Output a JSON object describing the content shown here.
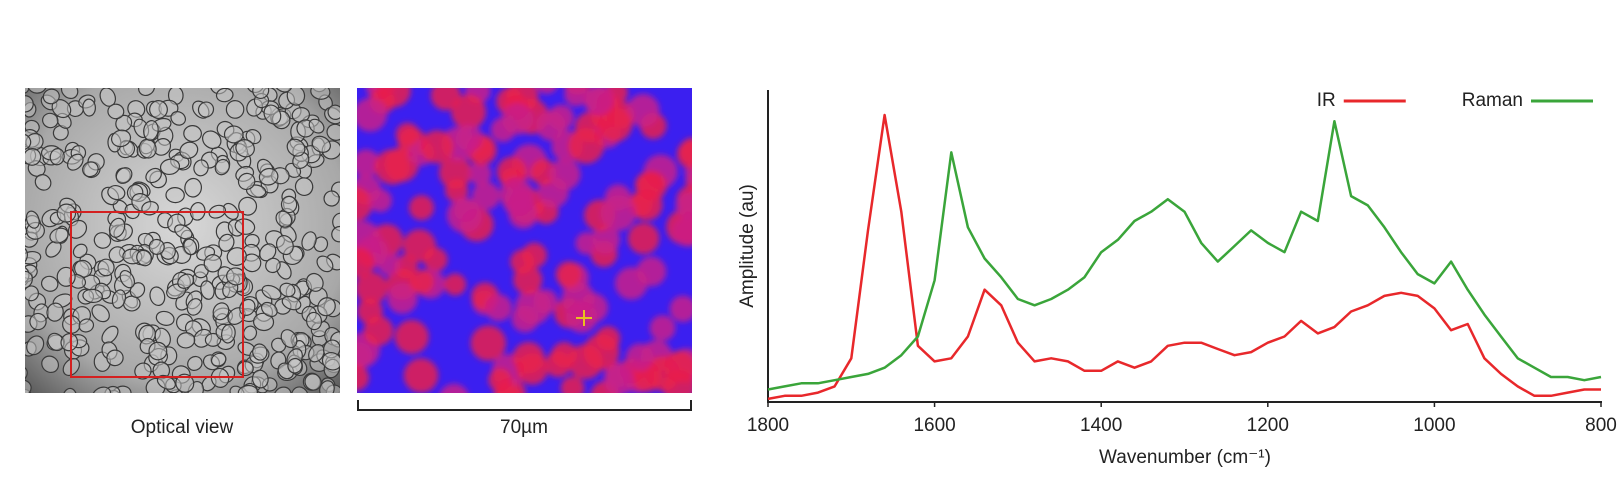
{
  "panels": {
    "optical_label": "Optical view",
    "map_scale_label": "70µm"
  },
  "chart_data": {
    "type": "line",
    "xlabel": "Wavenumber (cm⁻¹)",
    "ylabel": "Amplitude (au)",
    "x": [
      1800,
      1780,
      1760,
      1740,
      1720,
      1700,
      1680,
      1660,
      1640,
      1620,
      1600,
      1580,
      1560,
      1540,
      1520,
      1500,
      1480,
      1460,
      1440,
      1420,
      1400,
      1380,
      1360,
      1340,
      1320,
      1300,
      1280,
      1260,
      1240,
      1220,
      1200,
      1180,
      1160,
      1140,
      1120,
      1100,
      1080,
      1060,
      1040,
      1020,
      1000,
      980,
      960,
      940,
      920,
      900,
      880,
      860,
      840,
      820,
      800
    ],
    "series": [
      {
        "name": "IR",
        "color": "#e8282b",
        "values": [
          1,
          2,
          2,
          3,
          5,
          14,
          55,
          92,
          61,
          18,
          13,
          14,
          21,
          36,
          31,
          19,
          13,
          14,
          13,
          10,
          10,
          13,
          11,
          13,
          18,
          19,
          19,
          17,
          15,
          16,
          19,
          21,
          26,
          22,
          24,
          29,
          31,
          34,
          35,
          34,
          30,
          23,
          25,
          14,
          9,
          5,
          2,
          2,
          3,
          4,
          4
        ]
      },
      {
        "name": "Raman",
        "color": "#3aa53a",
        "values": [
          4,
          5,
          6,
          6,
          7,
          8,
          9,
          11,
          15,
          21,
          39,
          80,
          56,
          46,
          40,
          33,
          31,
          33,
          36,
          40,
          48,
          52,
          58,
          61,
          65,
          61,
          51,
          45,
          50,
          55,
          51,
          48,
          61,
          58,
          90,
          66,
          63,
          56,
          48,
          41,
          38,
          45,
          36,
          28,
          21,
          14,
          11,
          8,
          8,
          7,
          8
        ]
      }
    ],
    "xlim": [
      1800,
      800
    ],
    "xticks": [
      1800,
      1600,
      1400,
      1200,
      1000,
      800
    ],
    "ylim": [
      0,
      100
    ],
    "legend": "upper right"
  }
}
